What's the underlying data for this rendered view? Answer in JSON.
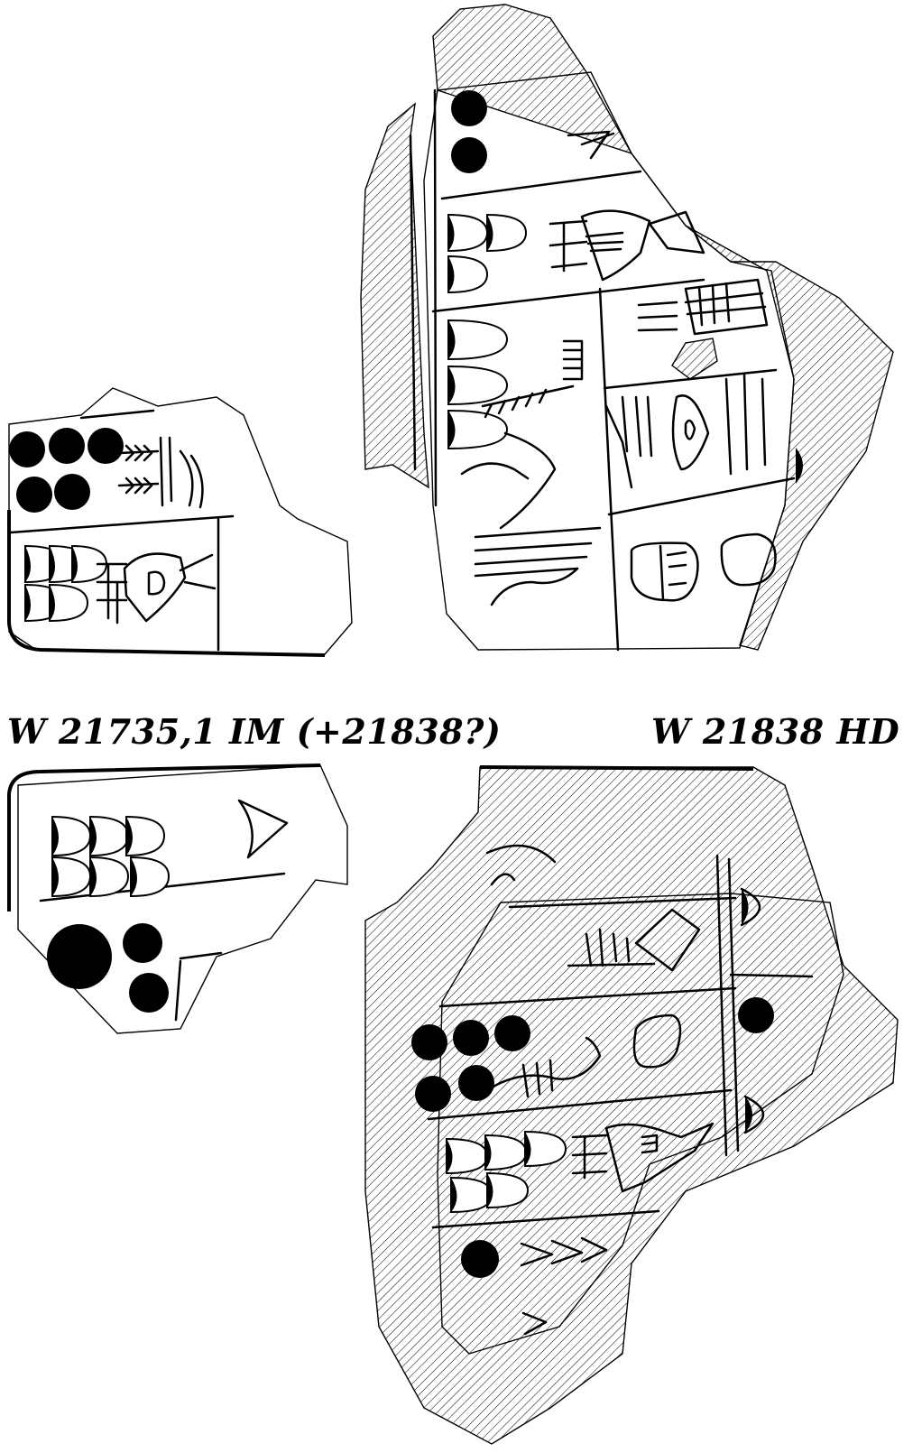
{
  "labels": {
    "left": "W 21735,1 IM (+21838?)",
    "right": "W 21838 HD"
  },
  "colors": {
    "ink": "#000000",
    "paper": "#ffffff"
  }
}
